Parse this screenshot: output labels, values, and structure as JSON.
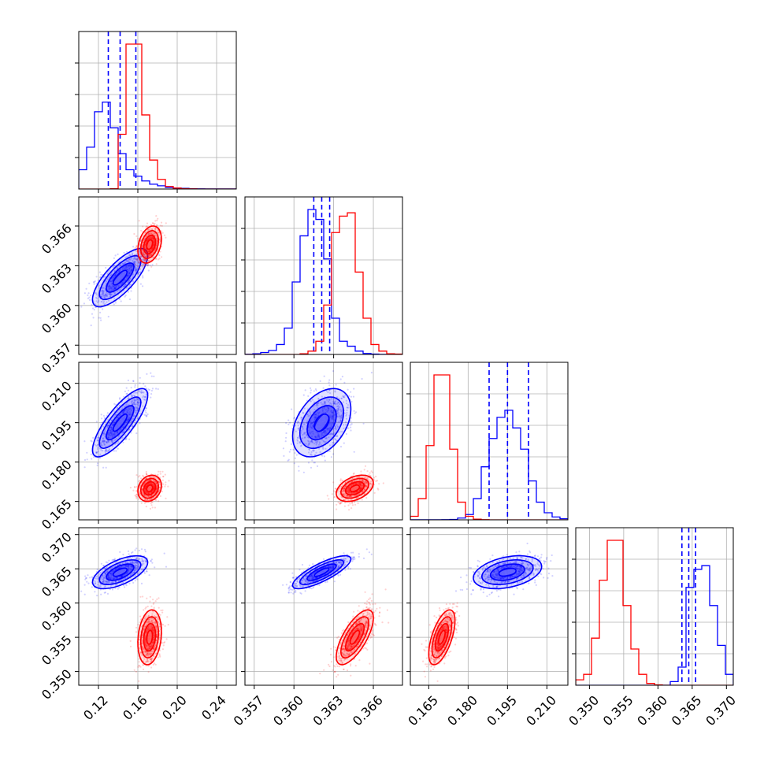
{
  "chart_data": {
    "type": "corner",
    "title": "",
    "grid": true,
    "legend": "none",
    "parameters": 4,
    "colors": {
      "series_blue": "#0000ff",
      "series_red": "#ff0000",
      "grid": "#b0b0b0",
      "axis": "#000000"
    },
    "axes": [
      {
        "range": [
          0.1,
          0.26
        ],
        "ticks": [
          0.12,
          0.16,
          0.2,
          0.24
        ],
        "tick_labels": [
          "0.12",
          "0.16",
          "0.20",
          "0.24"
        ]
      },
      {
        "range": [
          0.3563,
          0.3682
        ],
        "ticks": [
          0.357,
          0.36,
          0.363,
          0.366
        ],
        "tick_labels": [
          "0.357",
          "0.360",
          "0.363",
          "0.366"
        ]
      },
      {
        "range": [
          0.158,
          0.218
        ],
        "ticks": [
          0.165,
          0.18,
          0.195,
          0.21
        ],
        "tick_labels": [
          "0.165",
          "0.180",
          "0.195",
          "0.210"
        ]
      },
      {
        "range": [
          0.348,
          0.371
        ],
        "ticks": [
          0.35,
          0.355,
          0.36,
          0.365,
          0.37
        ],
        "tick_labels": [
          "0.350",
          "0.355",
          "0.360",
          "0.365",
          "0.370"
        ]
      }
    ],
    "series": [
      {
        "color": "blue",
        "quantiles": [
          [
            0.13,
            0.142,
            0.158
          ],
          [
            0.3615,
            0.3621,
            0.3627
          ],
          [
            0.188,
            0.195,
            0.203
          ],
          [
            0.3635,
            0.3645,
            0.3655
          ]
        ],
        "means": [
          0.142,
          0.3621,
          0.195,
          0.3645
        ],
        "sds": [
          0.014,
          0.0011,
          0.0065,
          0.0012
        ],
        "histograms": [
          [
            0.6,
            1.3,
            2.4,
            2.7,
            1.9,
            1.1,
            0.6,
            0.4,
            0.25,
            0.15,
            0.1,
            0.05,
            0.03,
            0.02,
            0.01,
            0.005,
            0.003,
            0.002,
            0.001,
            0.001
          ],
          [
            0.005,
            0.02,
            0.06,
            0.12,
            0.3,
            0.8,
            2.2,
            3.6,
            4.4,
            4.1,
            2.9,
            1.1,
            0.4,
            0.25,
            0.1,
            0.03,
            0.01,
            0.003,
            0.001,
            0.001
          ],
          [
            0.001,
            0.001,
            0.001,
            0.002,
            0.005,
            0.01,
            0.05,
            0.15,
            0.6,
            1.5,
            2.3,
            2.9,
            3.1,
            2.6,
            2.0,
            1.1,
            0.5,
            0.2,
            0.08,
            0.03
          ],
          [
            0,
            0,
            0,
            0,
            0,
            0,
            0,
            0,
            0,
            0,
            0,
            0,
            0.1,
            0.5,
            2.7,
            3.2,
            3.3,
            2.2,
            1.1,
            0.3
          ]
        ],
        "correlations": [
          [
            1,
            0.75,
            0.8,
            0.6
          ],
          [
            0.75,
            1,
            0.4,
            0.8
          ],
          [
            0.8,
            0.4,
            1,
            0.35
          ],
          [
            0.6,
            0.8,
            0.35,
            1
          ]
        ]
      },
      {
        "color": "red",
        "means": [
          0.172,
          0.3646,
          0.17,
          0.355
        ],
        "sds": [
          0.006,
          0.0007,
          0.0025,
          0.002
        ],
        "histograms": [
          [
            0,
            0,
            0,
            0,
            0.01,
            1.7,
            4.5,
            4.5,
            2.3,
            0.9,
            0.3,
            0.08,
            0.03,
            0.01,
            0.005,
            0,
            0,
            0,
            0,
            0
          ],
          [
            0,
            0,
            0,
            0,
            0,
            0,
            0,
            0.02,
            0.1,
            0.4,
            1.5,
            3.7,
            4.2,
            4.3,
            2.5,
            1.1,
            0.3,
            0.1,
            0.02,
            0.01
          ],
          [
            0.1,
            0.6,
            2.1,
            4.1,
            4.1,
            2.0,
            0.5,
            0.1,
            0.02,
            0.005,
            0,
            0,
            0,
            0,
            0,
            0,
            0,
            0,
            0,
            0
          ],
          [
            0.15,
            0.3,
            1.3,
            2.9,
            4.0,
            4.0,
            2.2,
            1.0,
            0.3,
            0.05,
            0.01,
            0,
            0,
            0,
            0,
            0,
            0,
            0,
            0,
            0
          ]
        ],
        "correlations": [
          [
            1,
            0.3,
            0.2,
            0.2
          ],
          [
            0.3,
            1,
            0.4,
            0.7
          ],
          [
            0.2,
            0.4,
            1,
            0.6
          ],
          [
            0.2,
            0.7,
            0.6,
            1
          ]
        ]
      }
    ]
  }
}
